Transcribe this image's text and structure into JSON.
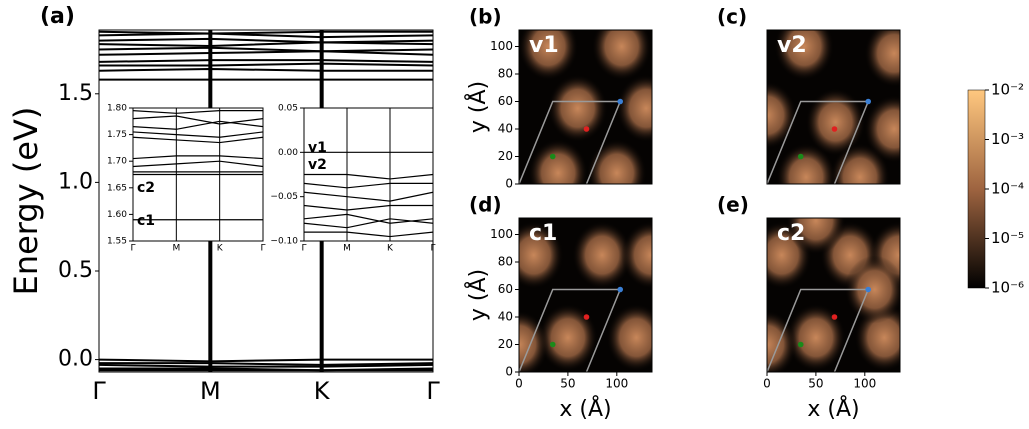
{
  "chart_data": [
    {
      "type": "line",
      "panel_label": "(a)",
      "ylabel": "Energy (eV)",
      "categories": [
        "Γ",
        "M",
        "K",
        "Γ"
      ],
      "ylim": [
        -0.07,
        1.86
      ],
      "yticks": [
        {
          "value": 0,
          "label": "0.0"
        },
        0.5,
        {
          "value": 1,
          "label": "1.0"
        },
        1.5
      ],
      "color": "#000000",
      "series": [
        {
          "values": [
            1.85,
            1.84,
            1.85,
            1.85
          ]
        },
        {
          "values": [
            1.83,
            1.84,
            1.82,
            1.83
          ]
        },
        {
          "values": [
            1.8,
            1.81,
            1.79,
            1.8
          ]
        },
        {
          "values": [
            1.78,
            1.77,
            1.79,
            1.78
          ]
        },
        {
          "values": [
            1.75,
            1.76,
            1.74,
            1.75
          ]
        },
        {
          "values": [
            1.72,
            1.73,
            1.74,
            1.72
          ]
        },
        {
          "values": [
            1.68,
            1.69,
            1.69,
            1.68
          ]
        },
        {
          "values": [
            1.66,
            1.66,
            1.67,
            1.66
          ]
        },
        {
          "values": [
            1.63,
            1.64,
            1.63,
            1.63
          ]
        },
        {
          "values": [
            1.58,
            1.58,
            1.58,
            1.58
          ]
        },
        {
          "values": [
            0.0,
            -0.01,
            0.0,
            0.0
          ]
        },
        {
          "values": [
            -0.02,
            -0.02,
            -0.03,
            -0.02
          ]
        },
        {
          "values": [
            -0.03,
            -0.04,
            -0.04,
            -0.03
          ]
        },
        {
          "values": [
            -0.05,
            -0.05,
            -0.06,
            -0.05
          ]
        },
        {
          "values": [
            -0.06,
            -0.06,
            -0.06,
            -0.06
          ]
        }
      ]
    },
    {
      "type": "line",
      "categories": [
        "Γ",
        "M",
        "K",
        "Γ"
      ],
      "ylim": [
        1.55,
        1.8
      ],
      "yticks": [
        1.55,
        {
          "value": 1.6,
          "label": "1.60"
        },
        1.65,
        {
          "value": 1.7,
          "label": "1.70"
        },
        1.75,
        {
          "value": 1.8,
          "label": "1.80"
        }
      ],
      "annotations": [
        "c2",
        "c1"
      ],
      "color": "#000000",
      "series": [
        {
          "values": [
            1.795,
            1.79,
            1.795,
            1.795
          ]
        },
        {
          "values": [
            1.78,
            1.785,
            1.77,
            1.78
          ]
        },
        {
          "values": [
            1.765,
            1.76,
            1.775,
            1.765
          ]
        },
        {
          "values": [
            1.755,
            1.75,
            1.745,
            1.755
          ]
        },
        {
          "values": [
            1.745,
            1.74,
            1.735,
            1.745
          ]
        },
        {
          "values": [
            1.705,
            1.71,
            1.71,
            1.705
          ]
        },
        {
          "values": [
            1.69,
            1.695,
            1.7,
            1.69
          ]
        },
        {
          "values": [
            1.68,
            1.68,
            1.68,
            1.68
          ]
        },
        {
          "values": [
            1.675,
            1.675,
            1.675,
            1.675
          ]
        },
        {
          "values": [
            1.59,
            1.59,
            1.59,
            1.59
          ]
        }
      ]
    },
    {
      "type": "line",
      "categories": [
        "Γ",
        "M",
        "K",
        "Γ"
      ],
      "ylim": [
        -0.1,
        0.05
      ],
      "yticks": [
        {
          "value": -0.1,
          "label": "−0.10"
        },
        {
          "value": -0.05,
          "label": "−0.05"
        },
        {
          "value": 0,
          "label": "0.00"
        },
        0.05
      ],
      "annotations": [
        "v1",
        "v2"
      ],
      "color": "#000000",
      "series": [
        {
          "values": [
            0.0,
            0.0,
            0.0,
            0.0
          ]
        },
        {
          "values": [
            -0.025,
            -0.025,
            -0.03,
            -0.025
          ]
        },
        {
          "values": [
            -0.035,
            -0.04,
            -0.035,
            -0.035
          ]
        },
        {
          "values": [
            -0.045,
            -0.05,
            -0.055,
            -0.045
          ]
        },
        {
          "values": [
            -0.06,
            -0.065,
            -0.06,
            -0.06
          ]
        },
        {
          "values": [
            -0.075,
            -0.07,
            -0.08,
            -0.075
          ]
        },
        {
          "values": [
            -0.08,
            -0.085,
            -0.075,
            -0.08
          ]
        },
        {
          "values": [
            -0.09,
            -0.09,
            -0.095,
            -0.09
          ]
        }
      ]
    },
    {
      "type": "heatmap",
      "panel_label": "(b)",
      "label": "v1",
      "ylabel": "y (Å)",
      "xlim": [
        0,
        136
      ],
      "ylim": [
        0,
        112
      ],
      "yticks": [
        0,
        20,
        40,
        60,
        80,
        100
      ],
      "blobs": [
        [
          30,
          100
        ],
        [
          105,
          100
        ],
        [
          60,
          55
        ],
        [
          130,
          55
        ],
        [
          40,
          8
        ],
        [
          100,
          8
        ]
      ],
      "cell": [
        [
          0,
          0
        ],
        [
          34.5,
          60
        ],
        [
          103.5,
          60
        ],
        [
          69,
          0
        ]
      ],
      "markers": [
        {
          "x": 34.5,
          "y": 20,
          "color": "#1a8a1a"
        },
        {
          "x": 69,
          "y": 40,
          "color": "#e02020"
        },
        {
          "x": 103.5,
          "y": 60,
          "color": "#3a7fd5"
        }
      ]
    },
    {
      "type": "heatmap",
      "panel_label": "(c)",
      "label": "v2",
      "xlim": [
        0,
        136
      ],
      "ylim": [
        0,
        112
      ],
      "blobs": [
        [
          38,
          100
        ],
        [
          130,
          95
        ],
        [
          0,
          50
        ],
        [
          70,
          45
        ],
        [
          130,
          40
        ],
        [
          40,
          5
        ],
        [
          95,
          5
        ]
      ],
      "cell": [
        [
          0,
          0
        ],
        [
          34.5,
          60
        ],
        [
          103.5,
          60
        ],
        [
          69,
          0
        ]
      ],
      "markers": [
        {
          "x": 34.5,
          "y": 20,
          "color": "#1a8a1a"
        },
        {
          "x": 69,
          "y": 40,
          "color": "#e02020"
        },
        {
          "x": 103.5,
          "y": 60,
          "color": "#3a7fd5"
        }
      ]
    },
    {
      "type": "heatmap",
      "panel_label": "(d)",
      "label": "c1",
      "ylabel": "y (Å)",
      "xlabel": "x (Å)",
      "xlim": [
        0,
        136
      ],
      "ylim": [
        0,
        112
      ],
      "xticks": [
        0,
        50,
        100
      ],
      "yticks": [
        0,
        20,
        40,
        60,
        80,
        100
      ],
      "blobs": [
        [
          15,
          85
        ],
        [
          85,
          85
        ],
        [
          135,
          85
        ],
        [
          50,
          25
        ],
        [
          120,
          25
        ],
        [
          0,
          20
        ]
      ],
      "cell": [
        [
          0,
          0
        ],
        [
          34.5,
          60
        ],
        [
          103.5,
          60
        ],
        [
          69,
          0
        ]
      ],
      "markers": [
        {
          "x": 34.5,
          "y": 20,
          "color": "#1a8a1a"
        },
        {
          "x": 69,
          "y": 40,
          "color": "#e02020"
        },
        {
          "x": 103.5,
          "y": 60,
          "color": "#3a7fd5"
        }
      ]
    },
    {
      "type": "heatmap",
      "panel_label": "(e)",
      "label": "c2",
      "xlabel": "x (Å)",
      "xlim": [
        0,
        136
      ],
      "ylim": [
        0,
        112
      ],
      "xticks": [
        0,
        50,
        100
      ],
      "blobs": [
        [
          15,
          85
        ],
        [
          85,
          85
        ],
        [
          135,
          85
        ],
        [
          50,
          25
        ],
        [
          120,
          25
        ],
        [
          0,
          20
        ],
        [
          50,
          110
        ],
        [
          110,
          60
        ]
      ],
      "cell": [
        [
          0,
          0
        ],
        [
          34.5,
          60
        ],
        [
          103.5,
          60
        ],
        [
          69,
          0
        ]
      ],
      "markers": [
        {
          "x": 34.5,
          "y": 20,
          "color": "#1a8a1a"
        },
        {
          "x": 69,
          "y": 40,
          "color": "#e02020"
        },
        {
          "x": 103.5,
          "y": 60,
          "color": "#3a7fd5"
        }
      ]
    },
    {
      "type": "colorbar",
      "log": true,
      "ylim": [
        1e-06,
        0.01
      ],
      "yticks": [
        {
          "value": 1e-06,
          "label": "10⁻⁶"
        },
        {
          "value": 1e-05,
          "label": "10⁻⁵"
        },
        {
          "value": 0.0001,
          "label": "10⁻⁴"
        },
        {
          "value": 0.001,
          "label": "10⁻³"
        },
        {
          "value": 0.01,
          "label": "10⁻²"
        }
      ]
    }
  ]
}
